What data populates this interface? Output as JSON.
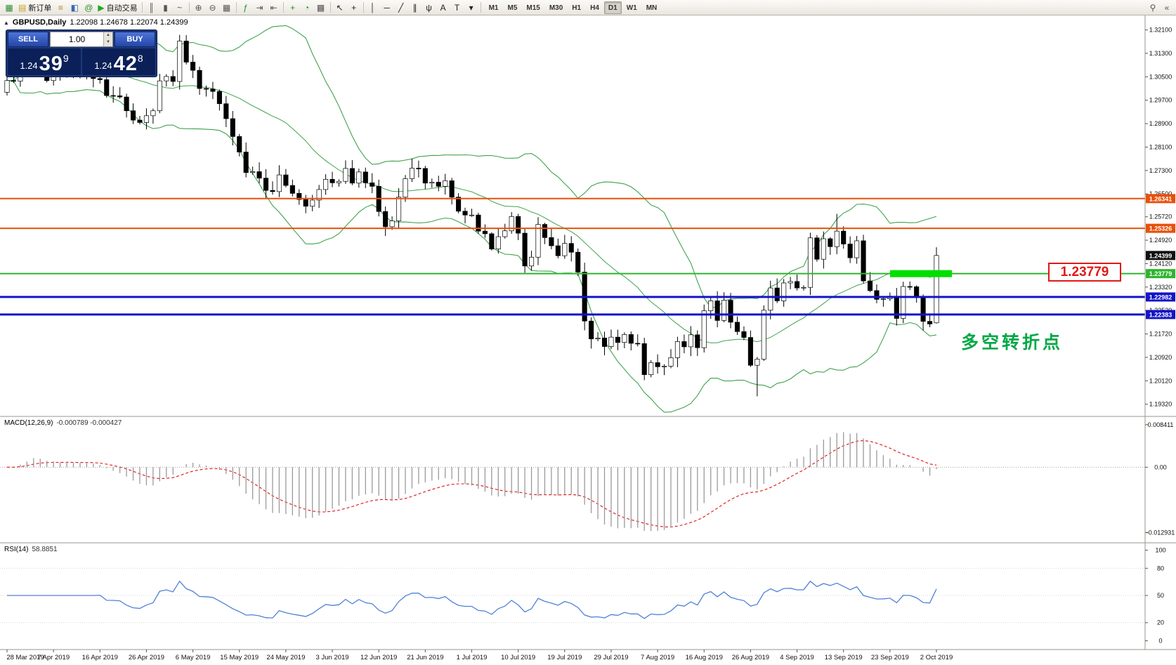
{
  "toolbar": {
    "items": [
      {
        "type": "icon",
        "name": "new-chart",
        "glyph": "▦",
        "color": "#2e8b2e"
      },
      {
        "type": "labeled",
        "name": "new-order",
        "glyph": "▤",
        "color": "#c8a020",
        "label": "新订单"
      },
      {
        "type": "icon",
        "name": "profiles",
        "glyph": "≡",
        "color": "#b08a2a"
      },
      {
        "type": "icon",
        "name": "market-watch",
        "glyph": "◧",
        "color": "#3a66b0"
      },
      {
        "type": "icon",
        "name": "community",
        "glyph": "@",
        "color": "#2e8b2e"
      },
      {
        "type": "labeled",
        "name": "auto-trading",
        "glyph": "▶",
        "color": "#1faa1f",
        "label": "自动交易"
      },
      {
        "type": "sep"
      },
      {
        "type": "icon",
        "name": "bar-chart-mode",
        "glyph": "║",
        "color": "#555"
      },
      {
        "type": "icon",
        "name": "candle-chart-mode",
        "glyph": "▮",
        "color": "#555"
      },
      {
        "type": "icon",
        "name": "line-chart-mode",
        "glyph": "~",
        "color": "#555"
      },
      {
        "type": "sep"
      },
      {
        "type": "icon",
        "name": "zoom-in",
        "glyph": "⊕",
        "color": "#555"
      },
      {
        "type": "icon",
        "name": "zoom-out",
        "glyph": "⊖",
        "color": "#555"
      },
      {
        "type": "icon",
        "name": "tile-windows",
        "glyph": "▦",
        "color": "#555"
      },
      {
        "type": "sep"
      },
      {
        "type": "icon",
        "name": "indicators",
        "glyph": "ƒ",
        "color": "#2e8b2e"
      },
      {
        "type": "icon",
        "name": "auto-scroll",
        "glyph": "⇥",
        "color": "#555"
      },
      {
        "type": "icon",
        "name": "chart-shift",
        "glyph": "⇤",
        "color": "#555"
      },
      {
        "type": "sep"
      },
      {
        "type": "icon",
        "name": "new-window",
        "glyph": "+",
        "color": "#2e8b2e"
      },
      {
        "type": "icon",
        "name": "period-clock",
        "glyph": "◔",
        "color": "#2e8b2e"
      },
      {
        "type": "icon",
        "name": "templates",
        "glyph": "▩",
        "color": "#555"
      },
      {
        "type": "sep"
      },
      {
        "type": "icon",
        "name": "cursor",
        "glyph": "↖",
        "color": "#222"
      },
      {
        "type": "icon",
        "name": "crosshair",
        "glyph": "+",
        "color": "#222"
      },
      {
        "type": "sep"
      },
      {
        "type": "icon",
        "name": "vertical-line-tool",
        "glyph": "│",
        "color": "#222"
      },
      {
        "type": "icon",
        "name": "horizontal-line-tool",
        "glyph": "─",
        "color": "#222"
      },
      {
        "type": "icon",
        "name": "trendline-tool",
        "glyph": "╱",
        "color": "#222"
      },
      {
        "type": "icon",
        "name": "channel-tool",
        "glyph": "∥",
        "color": "#222"
      },
      {
        "type": "icon",
        "name": "fibonacci-tool",
        "glyph": "ψ",
        "color": "#222"
      },
      {
        "type": "icon",
        "name": "text-tool",
        "glyph": "A",
        "color": "#222"
      },
      {
        "type": "icon",
        "name": "label-tool",
        "glyph": "T",
        "color": "#222"
      },
      {
        "type": "icon",
        "name": "shapes-dropdown",
        "glyph": "▾",
        "color": "#222"
      },
      {
        "type": "sep"
      },
      {
        "type": "timeframes"
      }
    ],
    "timeframes": {
      "options": [
        "M1",
        "M5",
        "M15",
        "M30",
        "H1",
        "H4",
        "D1",
        "W1",
        "MN"
      ],
      "active": "D1"
    },
    "right_icons": [
      {
        "name": "search",
        "glyph": "⚲"
      },
      {
        "name": "collapse-toolbar",
        "glyph": "«"
      }
    ]
  },
  "symbol_header": {
    "collapse_icon": "▲",
    "symbol": "GBPUSD,Daily",
    "ohlc": "1.22098 1.24678 1.22074 1.24399"
  },
  "trade_panel": {
    "sell_label": "SELL",
    "buy_label": "BUY",
    "volume": "1.00",
    "spin_up": "▲",
    "spin_down": "▼",
    "sell_price": {
      "small": "1.24",
      "big": "39",
      "sup": "9"
    },
    "buy_price": {
      "small": "1.24",
      "big": "42",
      "sup": "8"
    }
  },
  "main_chart": {
    "price_axis_labels": [
      "1.32100",
      "1.31300",
      "1.30500",
      "1.29700",
      "1.28900",
      "1.28100",
      "1.27300",
      "1.26500",
      "1.25720",
      "1.24920",
      "1.24120",
      "1.23320",
      "1.22520",
      "1.21720",
      "1.20920",
      "1.20120",
      "1.19320"
    ],
    "levels": [
      {
        "value": "1.26341",
        "price": 1.26341,
        "color": "#E8500A",
        "line": true,
        "width": 2
      },
      {
        "value": "1.25326",
        "price": 1.25326,
        "color": "#E8500A",
        "line": true,
        "width": 2
      },
      {
        "value": "1.24399",
        "price": 1.24399,
        "color": "#111111",
        "line": false,
        "width": 0
      },
      {
        "value": "1.23779",
        "price": 1.23779,
        "color": "#2DB52D",
        "line": true,
        "width": 2
      },
      {
        "value": "1.22982",
        "price": 1.22982,
        "color": "#1414C8",
        "line": true,
        "width": 3
      },
      {
        "value": "1.22383",
        "price": 1.22383,
        "color": "#1414C8",
        "line": true,
        "width": 3
      }
    ],
    "highlight": {
      "price": 1.23779,
      "color": "#00DE00"
    },
    "annotation": {
      "text": "多空转折点",
      "color": "#00A846"
    },
    "callout": {
      "text": "1.23779",
      "color": "#E01818"
    },
    "bollinger_color": "#3FA34D",
    "bull_color": "#FFFFFF",
    "bear_color": "#000000"
  },
  "macd_panel": {
    "label": {
      "name": "MACD(12,26,9)",
      "values": "-0.000789 -0.000427"
    },
    "axis_labels": [
      "0.008411",
      "0.00",
      "-0.012931"
    ],
    "histogram_color": "#9A9A9A",
    "signal_color": "#E01010"
  },
  "rsi_panel": {
    "label": {
      "name": "RSI(14)",
      "value": "58.8851"
    },
    "axis_labels": [
      "100",
      "80",
      "50",
      "20",
      "0"
    ],
    "levels": [
      80,
      50,
      20
    ],
    "line_color": "#4F81D8"
  },
  "date_axis": {
    "labels": [
      "28 Mar 2019",
      "7 Apr 2019",
      "16 Apr 2019",
      "26 Apr 2019",
      "6 May 2019",
      "15 May 2019",
      "24 May 2019",
      "3 Jun 2019",
      "12 Jun 2019",
      "21 Jun 2019",
      "1 Jul 2019",
      "10 Jul 2019",
      "19 Jul 2019",
      "29 Jul 2019",
      "7 Aug 2019",
      "16 Aug 2019",
      "26 Aug 2019",
      "4 Sep 2019",
      "13 Sep 2019",
      "23 Sep 2019",
      "2 Oct 2019"
    ]
  },
  "chart": {
    "type": "candlestick",
    "closes": [
      1.3037,
      1.3035,
      1.3102,
      1.3127,
      1.3157,
      1.3076,
      1.3037,
      1.3064,
      1.3053,
      1.309,
      1.3054,
      1.3074,
      1.3098,
      1.3044,
      1.304,
      1.2986,
      1.2985,
      1.2981,
      1.2934,
      1.2902,
      1.2894,
      1.2917,
      1.2934,
      1.3036,
      1.3051,
      1.3034,
      1.3172,
      1.31,
      1.3072,
      1.301,
      1.3008,
      1.3,
      1.2958,
      1.2907,
      1.2846,
      1.2793,
      1.2723,
      1.2726,
      1.2704,
      1.2662,
      1.2658,
      1.2715,
      1.2679,
      1.2652,
      1.2631,
      1.2608,
      1.2629,
      1.2665,
      1.27,
      1.2688,
      1.2693,
      1.2737,
      1.2687,
      1.2725,
      1.2688,
      1.2676,
      1.259,
      1.2538,
      1.2558,
      1.2639,
      1.2702,
      1.2738,
      1.2737,
      1.2687,
      1.269,
      1.2676,
      1.2695,
      1.2639,
      1.2591,
      1.2578,
      1.2578,
      1.2523,
      1.2514,
      1.2462,
      1.2504,
      1.2524,
      1.2573,
      1.2516,
      1.2404,
      1.2434,
      1.2546,
      1.2501,
      1.2473,
      1.2439,
      1.2481,
      1.2451,
      1.2383,
      1.2216,
      1.2155,
      1.2158,
      1.2129,
      1.2161,
      1.2143,
      1.217,
      1.214,
      1.2139,
      1.2033,
      1.2074,
      1.206,
      1.2062,
      1.2091,
      1.2146,
      1.2128,
      1.2169,
      1.2125,
      1.2251,
      1.2285,
      1.2218,
      1.2287,
      1.2212,
      1.218,
      1.216,
      1.2065,
      1.2086,
      1.2253,
      1.2329,
      1.2285,
      1.2346,
      1.2351,
      1.2329,
      1.2331,
      1.25,
      1.2427,
      1.2497,
      1.247,
      1.2523,
      1.2479,
      1.2432,
      1.249,
      1.2353,
      1.232,
      1.229,
      1.2292,
      1.2301,
      1.2225,
      1.2334,
      1.2333,
      1.2296,
      1.2215,
      1.2206,
      1.24399
    ],
    "overrides": {
      "26": {
        "h": 1.3193
      },
      "96": {
        "l": 1.2014
      },
      "113": {
        "l": 1.1959
      },
      "125": {
        "h": 1.2582
      },
      "140": {
        "o": 1.22098,
        "h": 1.24678,
        "l": 1.22074,
        "c": 1.24399
      }
    }
  }
}
